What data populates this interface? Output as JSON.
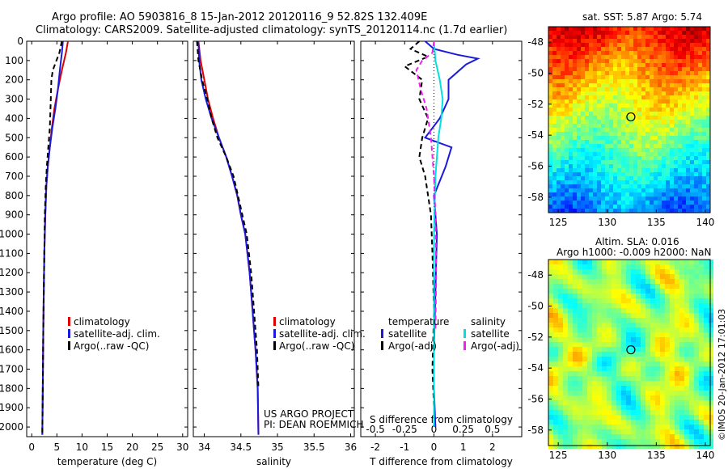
{
  "header": {
    "line1": "Argo profile: AO 5903816_8 15-Jan-2012 20120116_9 52.82S 132.409E",
    "line2": "Climatology: CARS2009. Satellite-adjusted climatology: synTS_20120114.nc (1.7d earlier)"
  },
  "colors": {
    "climatology": "#dd0000",
    "satellite": "#1a1add",
    "argo": "#000000",
    "sat_salinity": "#00e0e0",
    "argo_adj_salinity": "#ee22ee"
  },
  "chart_data": [
    {
      "type": "line",
      "id": "temperature",
      "xlabel": "temperature (deg C)",
      "ylabel": "",
      "xlim": [
        -1,
        31
      ],
      "ylim": [
        2050,
        0
      ],
      "xticks": [
        "0",
        "5",
        "10",
        "15",
        "20",
        "25",
        "30"
      ],
      "yticks": [
        "0",
        "100",
        "200",
        "300",
        "400",
        "500",
        "600",
        "700",
        "800",
        "900",
        "1000",
        "1100",
        "1200",
        "1300",
        "1400",
        "1500",
        "1600",
        "1700",
        "1800",
        "1900",
        "2000"
      ],
      "legend": [
        "climatology",
        "satellite-adj. clim.",
        "Argo(..raw -QC)"
      ],
      "series": [
        {
          "name": "climatology",
          "style": "solid",
          "color": "#dd0000",
          "x": [
            7.2,
            6.8,
            6.0,
            5.2,
            4.5,
            4.0,
            3.6,
            3.2,
            2.9,
            2.7,
            2.5,
            2.4,
            2.3,
            2.2,
            2.1
          ],
          "y": [
            0,
            60,
            150,
            250,
            350,
            450,
            550,
            650,
            750,
            900,
            1100,
            1300,
            1500,
            1800,
            2040
          ]
        },
        {
          "name": "satellite-adj. clim.",
          "style": "solid",
          "color": "#1a1add",
          "x": [
            6.2,
            6.0,
            5.6,
            5.2,
            4.7,
            4.1,
            3.6,
            3.2,
            2.9,
            2.7,
            2.5,
            2.4,
            2.3,
            2.2,
            2.1
          ],
          "y": [
            0,
            60,
            150,
            250,
            350,
            450,
            550,
            650,
            750,
            900,
            1100,
            1300,
            1500,
            1800,
            2040
          ]
        },
        {
          "name": "Argo(..raw -QC)",
          "style": "dash",
          "color": "#000000",
          "x": [
            6.0,
            5.5,
            4.2,
            3.9,
            3.8,
            3.6,
            3.3,
            3.0,
            2.8,
            2.6,
            2.5,
            2.4,
            2.3,
            2.2,
            2.1
          ],
          "y": [
            0,
            60,
            150,
            200,
            300,
            450,
            550,
            650,
            750,
            900,
            1100,
            1300,
            1500,
            1800,
            2040
          ]
        }
      ]
    },
    {
      "type": "line",
      "id": "salinity",
      "xlabel": "salinity",
      "xlim": [
        33.85,
        36.05
      ],
      "ylim": [
        2050,
        0
      ],
      "xticks": [
        "34",
        "34.5",
        "35",
        "35.5",
        "36"
      ],
      "legend": [
        "climatology",
        "satellite-adj. clim.",
        "Argo(..raw -QC)"
      ],
      "annotation": [
        "US ARGO PROJECT",
        "PI: DEAN ROEMMICH"
      ],
      "series": [
        {
          "name": "climatology",
          "style": "solid",
          "color": "#dd0000",
          "x": [
            33.92,
            33.95,
            34.0,
            34.05,
            34.12,
            34.2,
            34.3,
            34.38,
            34.45,
            34.5,
            34.56,
            34.62,
            34.66,
            34.7,
            34.73,
            34.74
          ],
          "y": [
            0,
            100,
            200,
            300,
            400,
            500,
            600,
            700,
            800,
            900,
            1000,
            1200,
            1400,
            1600,
            1800,
            2040
          ]
        },
        {
          "name": "satellite-adj. clim.",
          "style": "solid",
          "color": "#1a1add",
          "x": [
            33.92,
            33.93,
            33.96,
            34.02,
            34.1,
            34.2,
            34.3,
            34.38,
            34.45,
            34.5,
            34.56,
            34.62,
            34.66,
            34.7,
            34.73,
            34.74
          ],
          "y": [
            0,
            100,
            200,
            300,
            400,
            500,
            600,
            700,
            800,
            900,
            1000,
            1200,
            1400,
            1600,
            1800,
            2040
          ]
        },
        {
          "name": "Argo(..raw -QC)",
          "style": "dash",
          "color": "#000000",
          "x": [
            33.9,
            33.92,
            33.97,
            34.04,
            34.1,
            34.18,
            34.3,
            34.4,
            34.46,
            34.52,
            34.58,
            34.64,
            34.68,
            34.72,
            34.74
          ],
          "y": [
            0,
            100,
            200,
            300,
            400,
            500,
            600,
            700,
            800,
            900,
            1000,
            1200,
            1400,
            1600,
            1800
          ]
        }
      ]
    },
    {
      "type": "line",
      "id": "differences",
      "xlabel": "T difference from climatology",
      "xlabel_top": "S difference from climatology",
      "xlim": [
        -2.5,
        3.0
      ],
      "ylim": [
        2050,
        0
      ],
      "xticks": [
        "-2",
        "-1",
        "0",
        "1",
        "2"
      ],
      "xticks_top": [
        "-0.5",
        "-0.25",
        "0",
        "0.25",
        "0.5"
      ],
      "legend_headers": [
        "temperature",
        "salinity"
      ],
      "legend": [
        "satellite",
        "Argo(-adj)",
        "satellite",
        "Argo(-adj)"
      ],
      "series": [
        {
          "name": "satellite",
          "group": "temperature",
          "style": "solid",
          "color": "#1a1add",
          "x": [
            -0.3,
            0.0,
            0.8,
            1.5,
            1.1,
            0.5,
            0.5,
            0.2,
            -0.3,
            0.6,
            0.4,
            0.0,
            0.1,
            0.05,
            0.0,
            0.0,
            0.05
          ],
          "y": [
            0,
            40,
            70,
            90,
            120,
            200,
            300,
            400,
            500,
            550,
            650,
            800,
            1000,
            1300,
            1600,
            1800,
            2000
          ]
        },
        {
          "name": "Argo(-adj)",
          "group": "temperature",
          "style": "dash",
          "color": "#000000",
          "x": [
            -0.5,
            -0.8,
            -0.2,
            -1.0,
            -0.4,
            -0.5,
            -0.2,
            -0.4,
            -0.5,
            -0.3,
            -0.1,
            -0.05,
            0.0,
            -0.05,
            0.0
          ],
          "y": [
            0,
            40,
            80,
            130,
            200,
            300,
            400,
            500,
            600,
            700,
            900,
            1100,
            1400,
            1700,
            1900
          ]
        },
        {
          "name": "satellite",
          "group": "salinity",
          "style": "solid",
          "color": "#00e0e0",
          "x": [
            0.0,
            0.05,
            0.2,
            0.3,
            0.25,
            0.15,
            0.05,
            0.0,
            0.0,
            0.0
          ],
          "y": [
            0,
            100,
            200,
            300,
            400,
            500,
            700,
            1000,
            1500,
            2000
          ]
        },
        {
          "name": "Argo(-adj)",
          "group": "salinity",
          "style": "dash",
          "color": "#ee22ee",
          "x": [
            0.0,
            -0.05,
            -0.4,
            -0.6,
            -0.45,
            -0.25,
            -0.1,
            0.0,
            0.05,
            0.08,
            0.05
          ],
          "y": [
            0,
            60,
            100,
            150,
            250,
            350,
            500,
            700,
            900,
            1200,
            1500
          ]
        }
      ]
    },
    {
      "type": "heatmap",
      "id": "sst-map",
      "title": "sat. SST: 5.87  Argo: 5.74",
      "xlim": [
        124,
        140.5
      ],
      "ylim": [
        -59,
        -47
      ],
      "xticks": [
        "125",
        "130",
        "135",
        "140"
      ],
      "yticks": [
        "-48",
        "-50",
        "-52",
        "-54",
        "-56",
        "-58"
      ],
      "marker": {
        "lon": 132.409,
        "lat": -52.82
      }
    },
    {
      "type": "heatmap",
      "id": "sla-map",
      "title": [
        "Altim. SLA: 0.016",
        "Argo h1000: -0.009 h2000: NaN"
      ],
      "xlim": [
        124,
        140.5
      ],
      "ylim": [
        -59,
        -47
      ],
      "xticks": [
        "125",
        "130",
        "135",
        "140"
      ],
      "yticks": [
        "-48",
        "-50",
        "-52",
        "-54",
        "-56",
        "-58"
      ],
      "marker": {
        "lon": 132.409,
        "lat": -52.82
      }
    }
  ],
  "credit": "©IMOS 20-Jan-2012 17:01:03"
}
